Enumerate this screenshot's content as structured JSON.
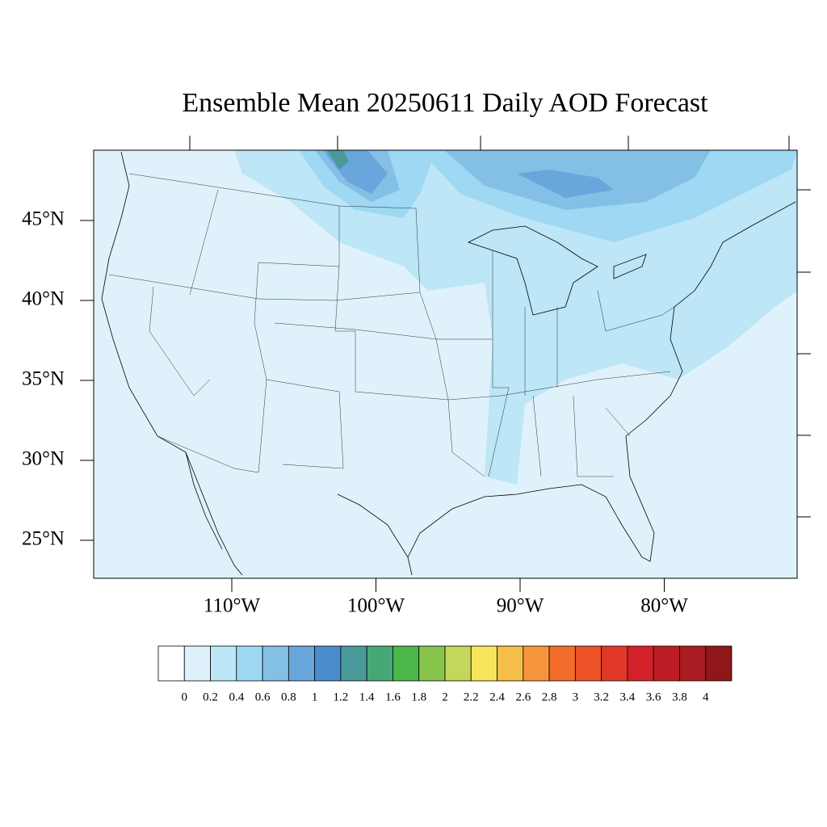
{
  "title": "Ensemble Mean 20250611 Daily AOD Forecast",
  "map": {
    "lat_ticks": [
      {
        "value": 45,
        "label": "45°N"
      },
      {
        "value": 40,
        "label": "40°N"
      },
      {
        "value": 35,
        "label": "35°N"
      },
      {
        "value": 30,
        "label": "30°N"
      },
      {
        "value": 25,
        "label": "25°N"
      }
    ],
    "lon_ticks": [
      {
        "value": -110,
        "label": "110°W"
      },
      {
        "value": -100,
        "label": "100°W"
      },
      {
        "value": -90,
        "label": "90°W"
      },
      {
        "value": -80,
        "label": "80°W"
      }
    ]
  },
  "colorbar": {
    "levels": [
      0,
      0.2,
      0.4,
      0.6,
      0.8,
      1,
      1.2,
      1.4,
      1.6,
      1.8,
      2,
      2.2,
      2.4,
      2.6,
      2.8,
      3,
      3.2,
      3.4,
      3.6,
      3.8,
      4
    ],
    "colors": [
      "#ffffff",
      "#dff2fb",
      "#bde6f7",
      "#9fd8f3",
      "#84bfe6",
      "#68a6db",
      "#4a8dca",
      "#4b9a9b",
      "#46a875",
      "#4bb74a",
      "#86c44c",
      "#c5d75a",
      "#f7e65c",
      "#f6bf4a",
      "#f6953b",
      "#f36c2c",
      "#ec5228",
      "#e03828",
      "#d22129",
      "#bd1d25",
      "#a81c22",
      "#8e1719"
    ]
  }
}
